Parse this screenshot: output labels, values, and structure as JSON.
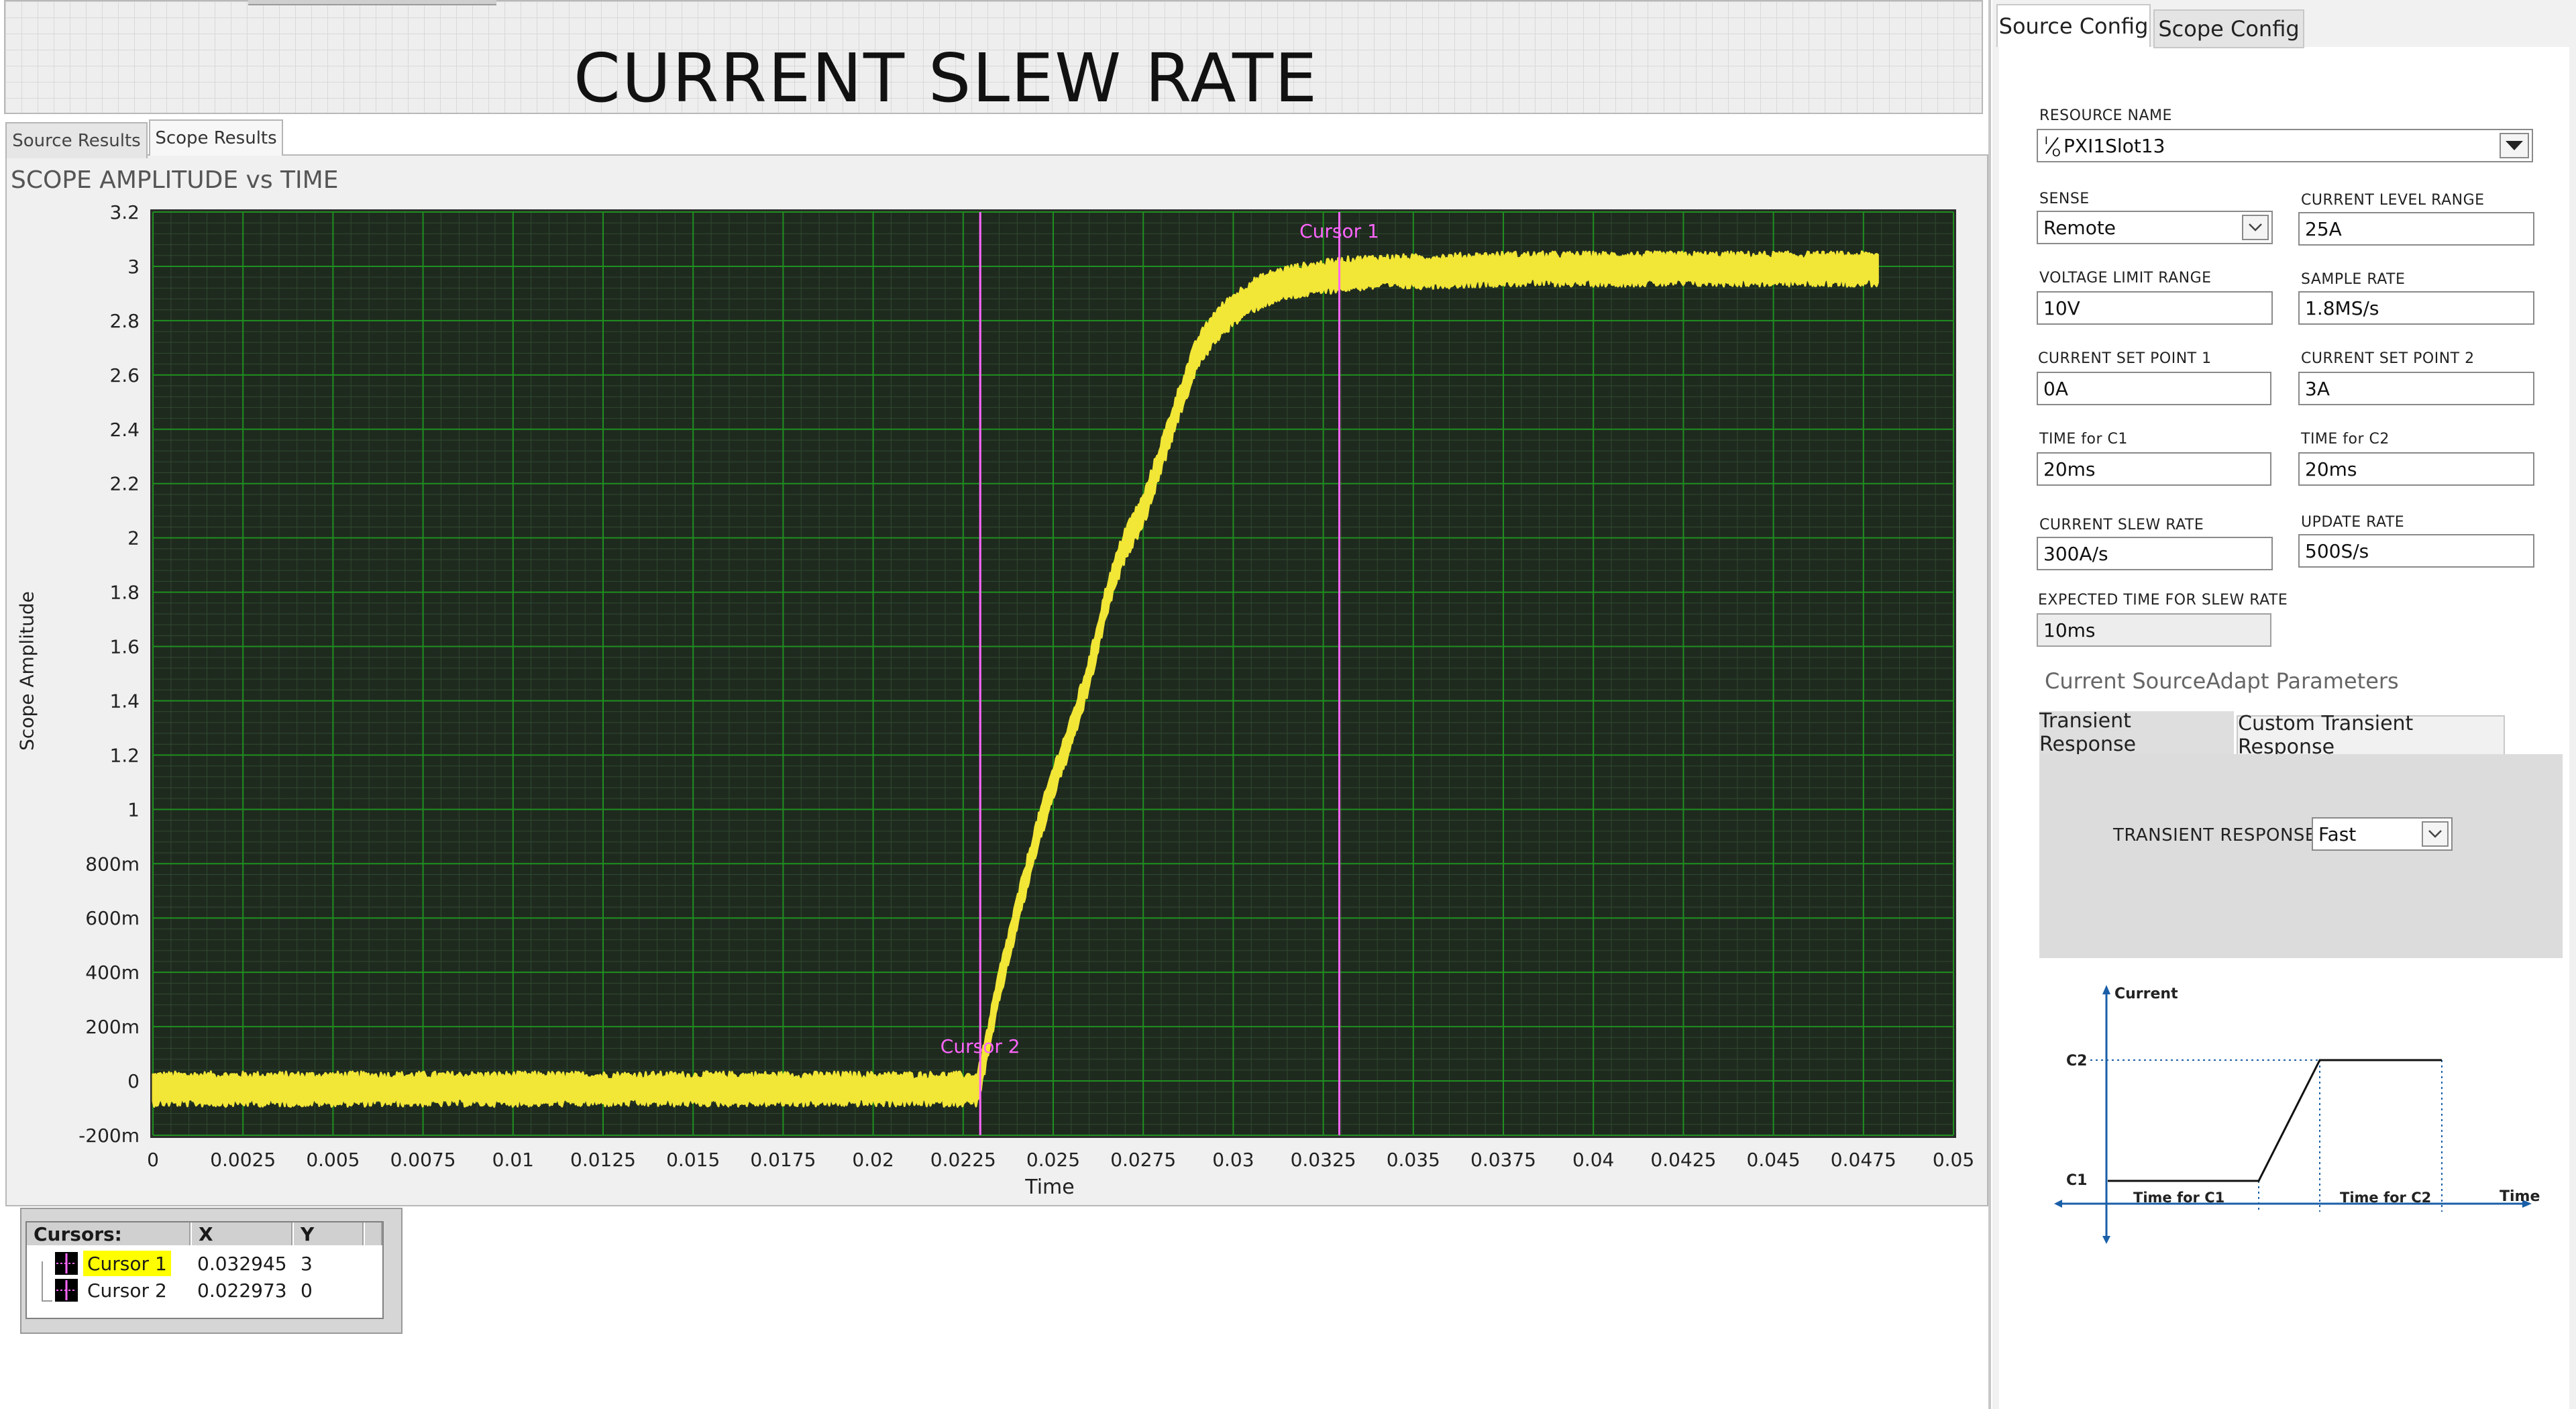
{
  "window": {
    "title": "CURRENT SLEW RATE"
  },
  "left_tabs": [
    {
      "label": "Source Results",
      "active": false
    },
    {
      "label": "Scope Results",
      "active": true
    }
  ],
  "graph": {
    "title": "SCOPE AMPLITUDE vs TIME",
    "plot_bg": "#1f2a1f",
    "grid_color": "#1f8f1f",
    "trace_color": "#f2e636",
    "cursor_color": "#ff66ff"
  },
  "chart_data": {
    "type": "line",
    "title": "SCOPE AMPLITUDE vs TIME",
    "xlabel": "Time",
    "ylabel": "Scope Amplitude",
    "xlim": [
      0,
      0.05
    ],
    "ylim": [
      -0.2,
      3.2
    ],
    "grid": true,
    "x_ticks": [
      0,
      0.0025,
      0.005,
      0.0075,
      0.01,
      0.0125,
      0.015,
      0.0175,
      0.02,
      0.0225,
      0.025,
      0.0275,
      0.03,
      0.0325,
      0.035,
      0.0375,
      0.04,
      0.0425,
      0.045,
      0.0475,
      0.05
    ],
    "x_tick_labels": [
      "0",
      "0.0025",
      "0.005",
      "0.0075",
      "0.01",
      "0.0125",
      "0.015",
      "0.0175",
      "0.02",
      "0.0225",
      "0.025",
      "0.0275",
      "0.03",
      "0.0325",
      "0.035",
      "0.0375",
      "0.04",
      "0.0425",
      "0.045",
      "0.0475",
      "0.05"
    ],
    "y_ticks": [
      -0.2,
      0,
      0.2,
      0.4,
      0.6,
      0.8,
      1,
      1.2,
      1.4,
      1.6,
      1.8,
      2,
      2.2,
      2.4,
      2.6,
      2.8,
      3,
      3.2
    ],
    "y_tick_labels": [
      "-200m",
      "0",
      "200m",
      "400m",
      "600m",
      "800m",
      "1",
      "1.2",
      "1.4",
      "1.6",
      "1.8",
      "2",
      "2.2",
      "2.4",
      "2.6",
      "2.8",
      "3",
      "3.2"
    ],
    "series": [
      {
        "x": [
          0,
          0.005,
          0.01,
          0.015,
          0.02,
          0.0229,
          0.0232,
          0.0235,
          0.024,
          0.0245,
          0.025,
          0.0255,
          0.026,
          0.0265,
          0.027,
          0.0275,
          0.028,
          0.0285,
          0.029,
          0.0295,
          0.03,
          0.0305,
          0.031,
          0.0315,
          0.032,
          0.0325,
          0.033,
          0.034,
          0.035,
          0.0375,
          0.04,
          0.0425,
          0.045,
          0.0479
        ],
        "y": [
          -0.03,
          -0.03,
          -0.03,
          -0.03,
          -0.03,
          -0.03,
          0.15,
          0.35,
          0.62,
          0.88,
          1.1,
          1.28,
          1.5,
          1.78,
          1.98,
          2.1,
          2.3,
          2.5,
          2.68,
          2.78,
          2.84,
          2.89,
          2.92,
          2.94,
          2.95,
          2.96,
          2.97,
          2.98,
          2.98,
          2.99,
          2.99,
          2.99,
          2.99,
          2.99
        ],
        "band": 0.1
      }
    ],
    "cursors": [
      {
        "name": "Cursor 1",
        "x": 0.032945,
        "y": 3
      },
      {
        "name": "Cursor 2",
        "x": 0.022973,
        "y": 0
      }
    ]
  },
  "cursor_table": {
    "header_name": "Cursors:",
    "header_x": "X",
    "header_y": "Y",
    "rows": [
      {
        "name": "Cursor 1",
        "x": "0.032945",
        "y": "3",
        "highlight": "#ffff00"
      },
      {
        "name": "Cursor 2",
        "x": "0.022973",
        "y": "0",
        "highlight": ""
      }
    ]
  },
  "right_tabs": [
    {
      "label": "Source Config",
      "active": true
    },
    {
      "label": "Scope Config",
      "active": false
    }
  ],
  "config": {
    "resource_name": {
      "label": "RESOURCE NAME",
      "value": "PXI1Slot13",
      "icon": "io-resource-icon"
    },
    "sense": {
      "label": "SENSE",
      "value": "Remote"
    },
    "current_level_range": {
      "label": "CURRENT LEVEL RANGE",
      "value": "25A"
    },
    "voltage_limit_range": {
      "label": "VOLTAGE LIMIT RANGE",
      "value": "10V"
    },
    "sample_rate": {
      "label": "SAMPLE RATE",
      "value": "1.8MS/s"
    },
    "current_set_point_1": {
      "label": "CURRENT SET POINT 1",
      "value": "0A"
    },
    "current_set_point_2": {
      "label": "CURRENT SET POINT 2",
      "value": "3A"
    },
    "time_c1": {
      "label": "TIME for C1",
      "value": "20ms"
    },
    "time_c2": {
      "label": "TIME for C2",
      "value": "20ms"
    },
    "current_slew_rate": {
      "label": "CURRENT SLEW RATE",
      "value": "300A/s"
    },
    "update_rate": {
      "label": "UPDATE RATE",
      "value": "500S/s"
    },
    "expected_time": {
      "label": "EXPECTED TIME FOR SLEW RATE",
      "value": "10ms"
    }
  },
  "sourceadapt": {
    "title": "Current SourceAdapt Parameters",
    "tabs": [
      {
        "label": "Transient Response",
        "active": true
      },
      {
        "label": "Custom Transient Response",
        "active": false
      }
    ],
    "transient_response": {
      "label": "TRANSIENT RESPONSE",
      "value": "Fast"
    }
  },
  "diagram": {
    "y_axis_label": "Current",
    "x_axis_label": "Time",
    "c1_label": "C1",
    "c2_label": "C2",
    "time_c1_label": "Time for C1",
    "time_c2_label": "Time for C2"
  }
}
